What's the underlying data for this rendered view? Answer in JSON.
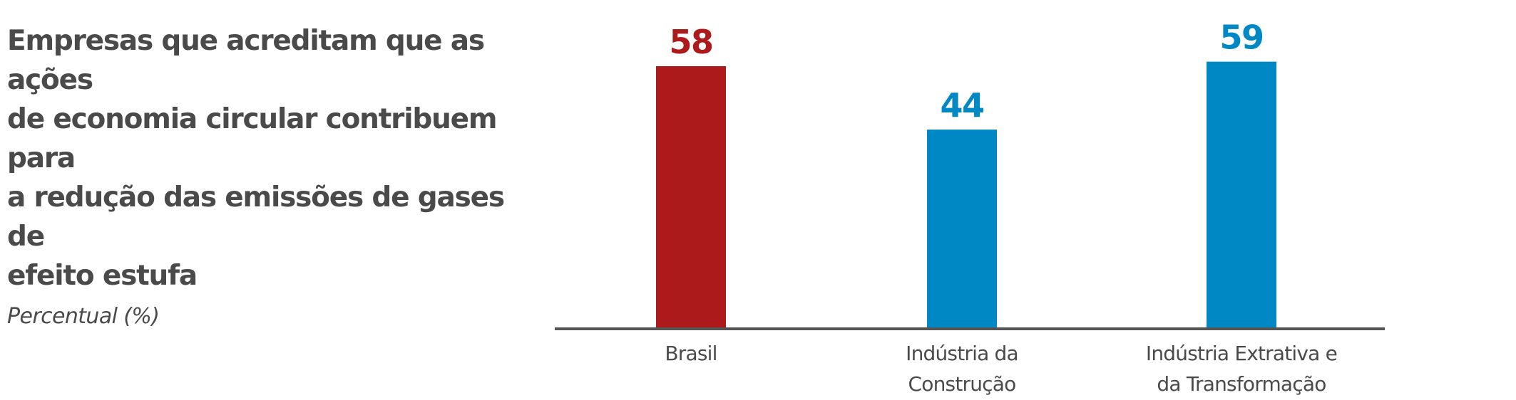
{
  "chart_data": {
    "type": "bar",
    "title": "Empresas que acreditam que as ações de economia circular contribuem para a redução das emissões de gases de efeito estufa",
    "title_lines": [
      "Empresas que acreditam que as ações",
      "de economia circular contribuem para",
      "a redução das emissões de gases de",
      "efeito estufa"
    ],
    "subtitle": "Percentual (%)",
    "categories": [
      "Brasil",
      "Indústria da Construção",
      "Indústria Extrativa e da Transformação"
    ],
    "category_lines": [
      [
        "Brasil"
      ],
      [
        "Indústria da",
        "Construção"
      ],
      [
        "Indústria Extrativa e",
        "da Transformação"
      ]
    ],
    "values": [
      58,
      44,
      59
    ],
    "bar_colors": [
      "#ac1a1b",
      "#0088c4",
      "#0088c4"
    ],
    "ylim": [
      0,
      60
    ],
    "grid": false,
    "xlabel": "",
    "ylabel": ""
  },
  "colors": {
    "text": "#4a4a4a",
    "axis": "#555555",
    "highlight": "#ac1a1b",
    "primary": "#0088c4"
  }
}
